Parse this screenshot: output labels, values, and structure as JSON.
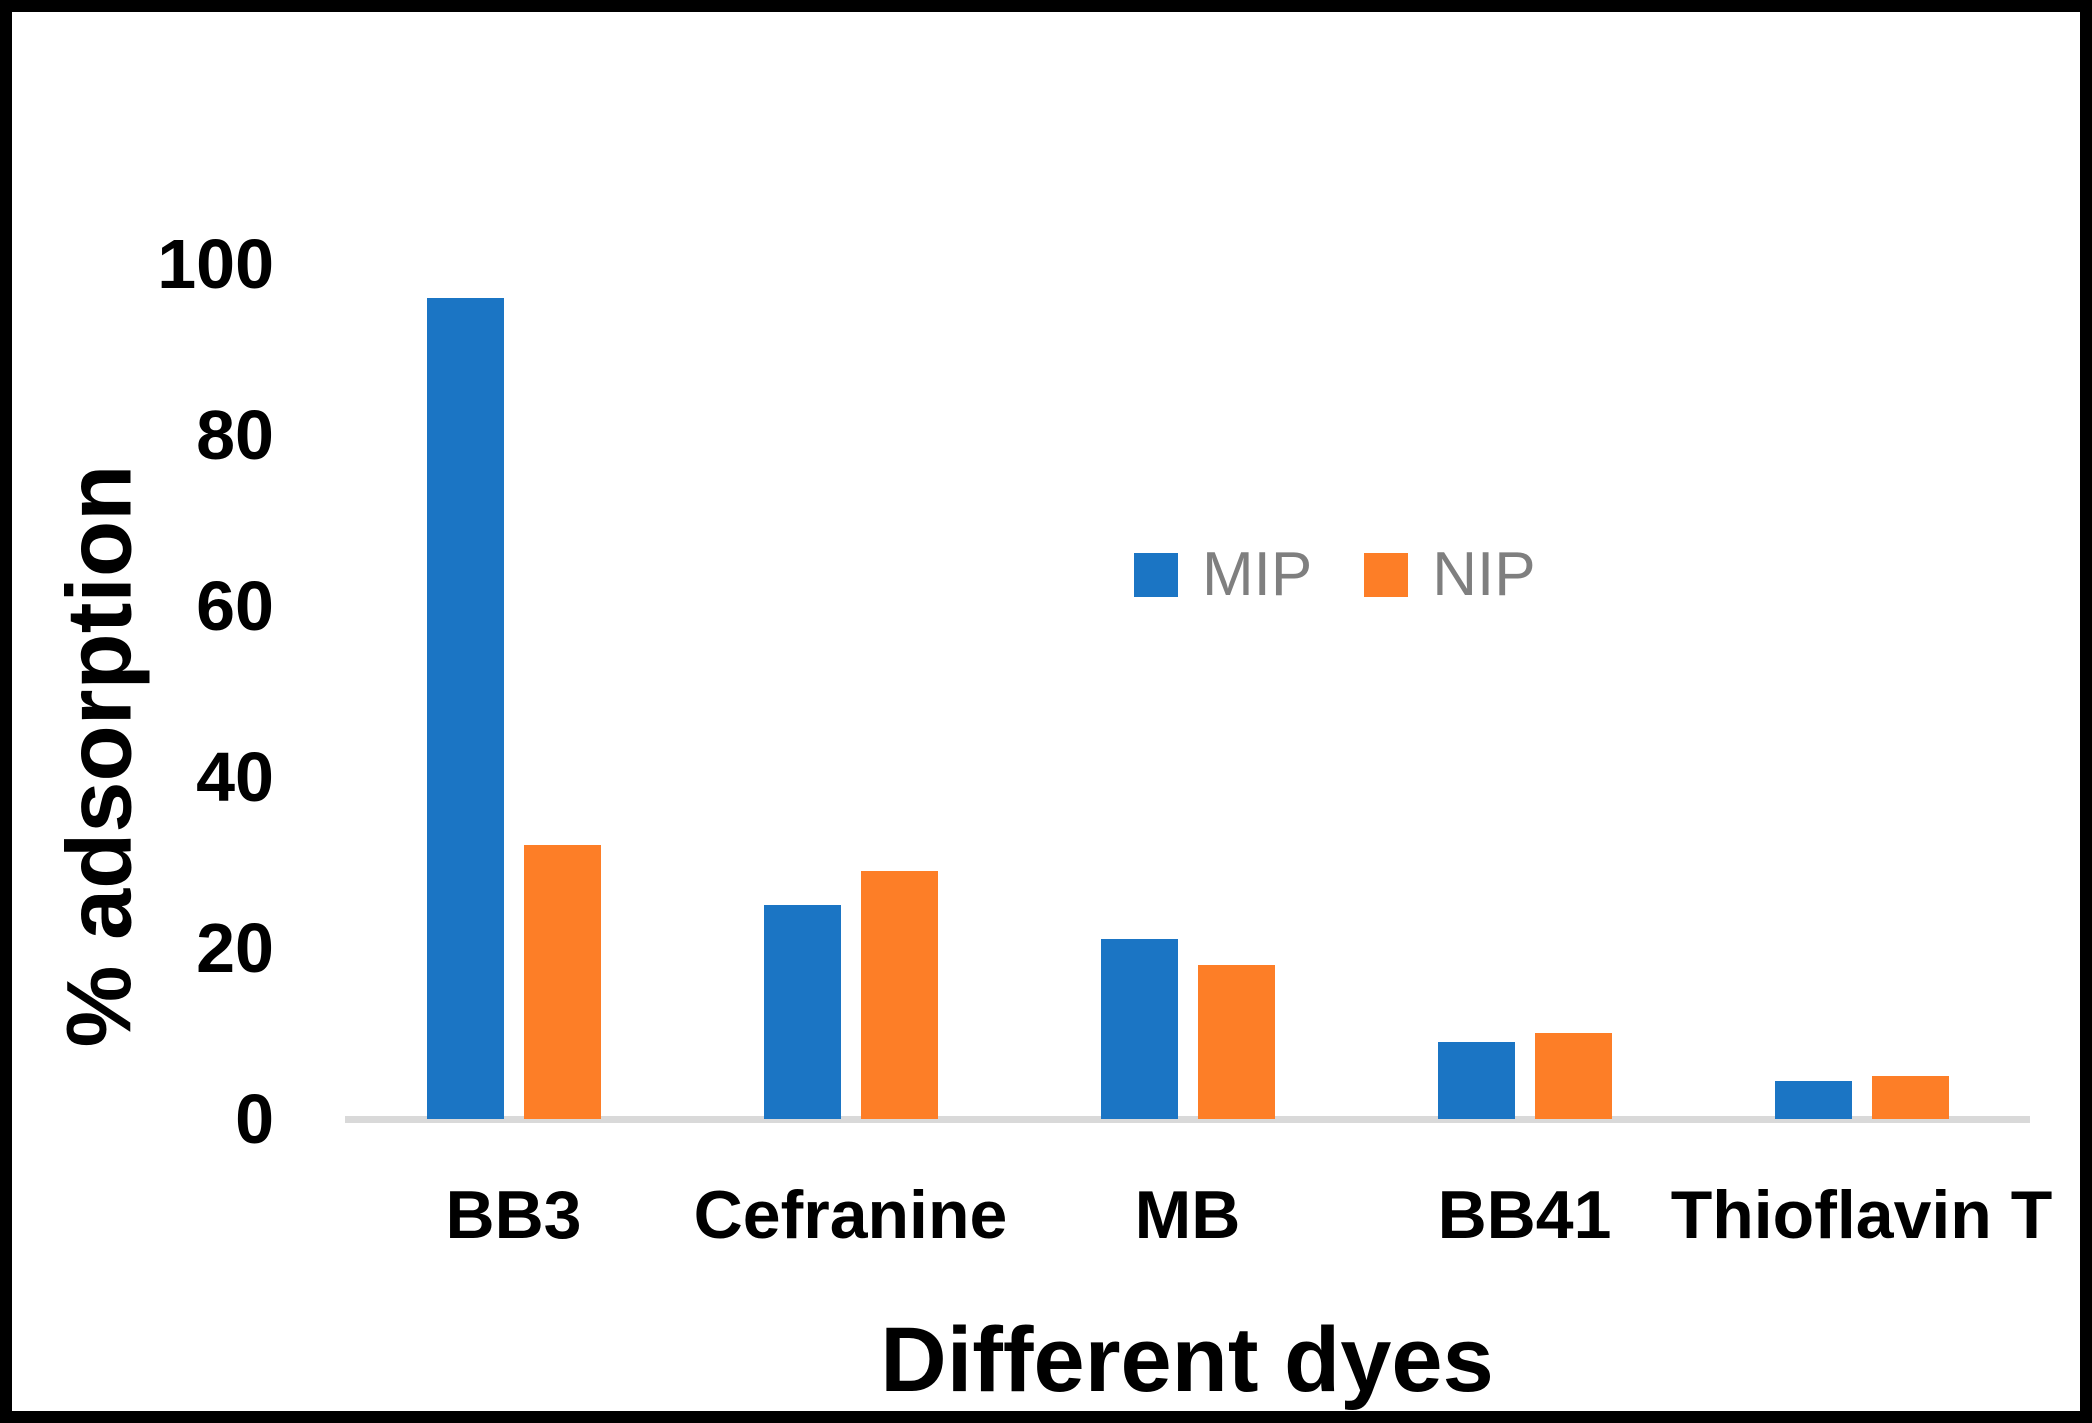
{
  "chart_data": {
    "type": "bar",
    "title": "",
    "categories": [
      "BB3",
      "Cefranine",
      "MB",
      "BB41",
      "Thioflavin T"
    ],
    "series": [
      {
        "name": "MIP",
        "color": "#1B75C4",
        "values": [
          96,
          25,
          21,
          9,
          4.5
        ]
      },
      {
        "name": "NIP",
        "color": "#FD7E27",
        "values": [
          32,
          29,
          18,
          10,
          5
        ]
      }
    ],
    "xlabel": "Different dyes",
    "ylabel": "% adsorption",
    "ylim": [
      0,
      100
    ],
    "yticks": [
      0,
      20,
      40,
      60,
      80,
      100
    ],
    "grid": false,
    "legend_position": "upper-center-right",
    "legend_text_color": "#7F7F7F",
    "axis_line_color": "#D9D9D9",
    "frame_color": "#000000",
    "background_color": "#FFFFFF"
  }
}
